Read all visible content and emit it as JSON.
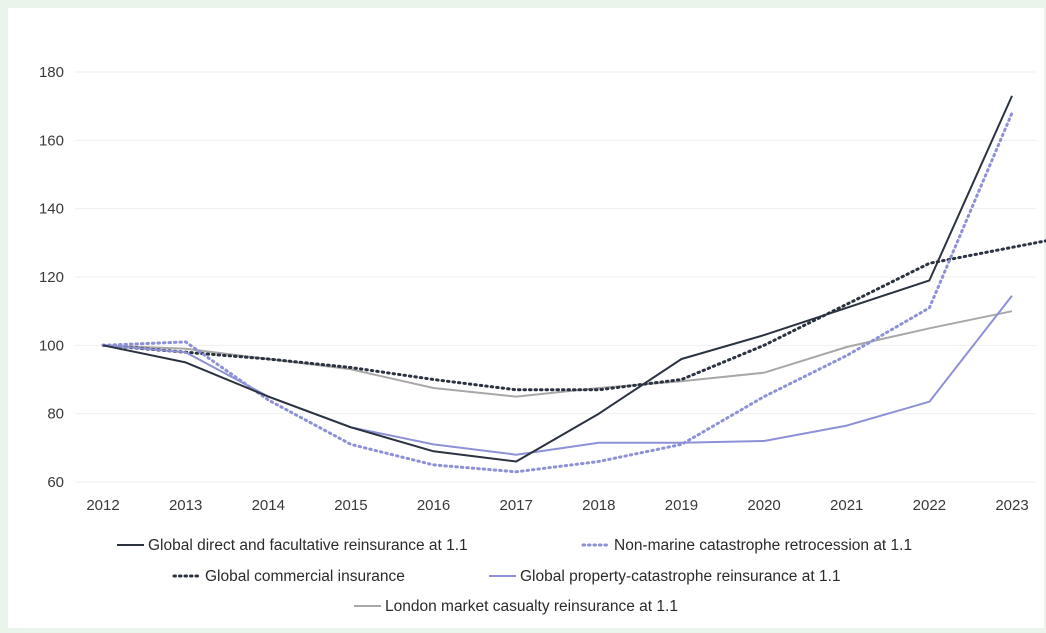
{
  "chart_data": {
    "type": "line",
    "title": "",
    "xlabel": "",
    "ylabel": "",
    "x": [
      "2012",
      "2013",
      "2014",
      "2015",
      "2016",
      "2017",
      "2018",
      "2019",
      "2020",
      "2021",
      "2022",
      "2023"
    ],
    "ylim": [
      60,
      180
    ],
    "yticks": [
      60,
      80,
      100,
      120,
      140,
      160,
      180
    ],
    "grid": "horizontal",
    "legend_position": "bottom",
    "series": [
      {
        "name": "Global direct and facultative reinsurance at 1.1",
        "color": "#2b3340",
        "dash": "solid",
        "values": [
          100,
          95,
          85,
          76,
          69,
          66,
          80,
          96,
          103,
          111,
          119,
          173
        ]
      },
      {
        "name": "Non-marine catastrophe retrocession at 1.1",
        "color": "#8e91d6",
        "dash": "dotted",
        "values": [
          100,
          101,
          84,
          71,
          65,
          63,
          66,
          71,
          85,
          97,
          111,
          168
        ]
      },
      {
        "name": "Global commercial insurance",
        "color": "#2b3340",
        "dash": "dotted",
        "x_end": 11.5,
        "values": [
          100,
          98,
          96,
          93.5,
          90,
          87,
          87,
          90,
          100,
          112,
          124,
          131
        ]
      },
      {
        "name": "Global property-catastrophe reinsurance at 1.1",
        "color": "#8e91d6",
        "dash": "solid",
        "values": [
          100,
          98,
          85,
          76,
          71,
          68,
          71.5,
          71.5,
          72,
          76.5,
          83.5,
          114.5
        ]
      },
      {
        "name": "London market casualty reinsurance at 1.1",
        "color": "#a8a8a8",
        "dash": "solid",
        "values": [
          100,
          99,
          96,
          93,
          87.5,
          85,
          87.5,
          89.5,
          92,
          99.5,
          105,
          110
        ]
      }
    ]
  }
}
